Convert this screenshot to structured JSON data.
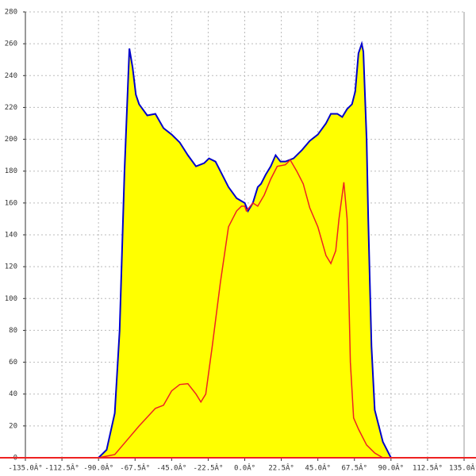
{
  "chart_data": {
    "type": "area",
    "xlim": [
      -135,
      135
    ],
    "xticks": [
      {
        "value": -135,
        "label": "-135.0Â°"
      },
      {
        "value": -112.5,
        "label": "-112.5Â°"
      },
      {
        "value": -90,
        "label": "-90.0Â°"
      },
      {
        "value": -67.5,
        "label": "-67.5Â°"
      },
      {
        "value": -45,
        "label": "-45.0Â°"
      },
      {
        "value": -22.5,
        "label": "-22.5Â°"
      },
      {
        "value": 0,
        "label": "0.0Â°"
      },
      {
        "value": 22.5,
        "label": "22.5Â°"
      },
      {
        "value": 45,
        "label": "45.0Â°"
      },
      {
        "value": 67.5,
        "label": "67.5Â°"
      },
      {
        "value": 90,
        "label": "90.0Â°"
      },
      {
        "value": 112.5,
        "label": "112.5Â°"
      },
      {
        "value": 135,
        "label": "135.0Â°"
      }
    ],
    "ylim": [
      0,
      280
    ],
    "yticks": [
      0,
      20,
      40,
      60,
      80,
      100,
      120,
      140,
      160,
      180,
      200,
      220,
      240,
      260,
      280
    ],
    "grid": true,
    "series": [
      {
        "color": "#0000cc",
        "fill": "#ffff00",
        "x": [
          -90,
          -85,
          -80,
          -77,
          -74,
          -71,
          -69,
          -67,
          -65,
          -60,
          -55,
          -50,
          -45,
          -40,
          -35,
          -30,
          -25,
          -22,
          -18,
          -15,
          -10,
          -5,
          0,
          2,
          5,
          8,
          10,
          13,
          16,
          19,
          22,
          25,
          30,
          35,
          40,
          45,
          50,
          53,
          57,
          60,
          63,
          66,
          68,
          70,
          72,
          73,
          75,
          76,
          78,
          80,
          85,
          90
        ],
        "values": [
          0,
          5,
          28,
          80,
          180,
          257,
          245,
          228,
          222,
          215,
          216,
          207,
          203,
          198,
          190,
          183,
          185,
          188,
          186,
          180,
          170,
          163,
          160,
          155,
          160,
          170,
          172,
          178,
          183,
          190,
          186,
          186,
          188,
          193,
          199,
          203,
          210,
          216,
          216,
          214,
          219,
          222,
          230,
          254,
          260,
          255,
          200,
          150,
          70,
          30,
          10,
          0
        ]
      },
      {
        "color": "#ee2222",
        "x": [
          -90,
          -80,
          -75,
          -65,
          -55,
          -50,
          -45,
          -40,
          -35,
          -30,
          -27,
          -24,
          -20,
          -15,
          -10,
          -5,
          -2,
          0,
          1,
          5,
          8,
          12,
          16,
          20,
          25,
          28,
          32,
          36,
          40,
          45,
          50,
          53,
          56,
          58,
          61,
          63,
          65,
          67,
          70,
          75,
          80,
          85,
          90
        ],
        "values": [
          0,
          2,
          8,
          20,
          31,
          33,
          42,
          46,
          46.5,
          40,
          35,
          40,
          70,
          110,
          145,
          155,
          158,
          158,
          155,
          160,
          158,
          165,
          175,
          183,
          184,
          187,
          180,
          172,
          157,
          145,
          127,
          122,
          130,
          150,
          173,
          150,
          60,
          25,
          18,
          8,
          3,
          0,
          0
        ]
      }
    ]
  }
}
